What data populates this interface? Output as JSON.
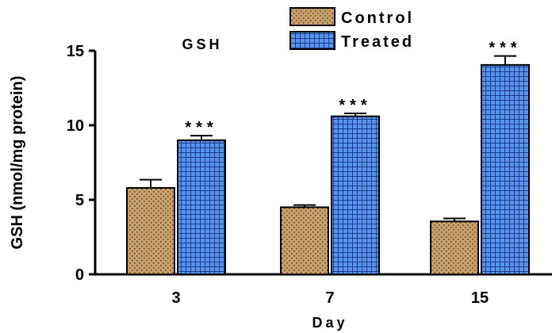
{
  "chart_data": {
    "type": "bar",
    "title": "GSH",
    "xlabel": "Day",
    "ylabel": "GSH (nmol/mg protein)",
    "categories": [
      "3",
      "7",
      "15"
    ],
    "ylim": [
      0,
      15
    ],
    "yticks": [
      0,
      5,
      10,
      15
    ],
    "series": [
      {
        "name": "Control",
        "values": [
          5.8,
          4.5,
          3.55
        ],
        "errors": [
          0.55,
          0.15,
          0.2
        ],
        "color": "#C8A06C",
        "pattern": "dotted"
      },
      {
        "name": "Treated",
        "values": [
          9.0,
          10.6,
          14.05
        ],
        "errors": [
          0.3,
          0.2,
          0.6
        ],
        "color": "#4A86E8",
        "pattern": "grid"
      }
    ],
    "annotations": [
      "***",
      "***",
      "***"
    ],
    "grid": false,
    "legend_position": "top-center"
  }
}
